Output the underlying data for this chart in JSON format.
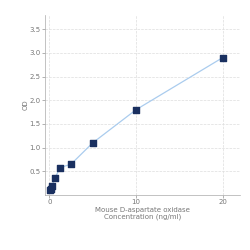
{
  "x_values": [
    0.078,
    0.156,
    0.3125,
    0.625,
    1.25,
    2.5,
    5,
    10,
    20
  ],
  "y_values": [
    0.105,
    0.13,
    0.2,
    0.35,
    0.58,
    0.65,
    1.1,
    1.8,
    2.9
  ],
  "xlabel_line1": "Mouse D-aspartate oxidase",
  "xlabel_line2": "Concentration (ng/ml)",
  "ylabel": "OD",
  "xlim": [
    -0.5,
    22
  ],
  "ylim": [
    0,
    3.8
  ],
  "xticks": [
    0,
    10,
    20
  ],
  "yticks": [
    0.5,
    1.0,
    1.5,
    2.0,
    2.5,
    3.0,
    3.5
  ],
  "line_color": "#aaccee",
  "marker_color": "#1a3060",
  "marker_size": 16,
  "grid_color": "#dddddd",
  "bg_color": "#ffffff",
  "font_size_label": 5,
  "font_size_tick": 5
}
